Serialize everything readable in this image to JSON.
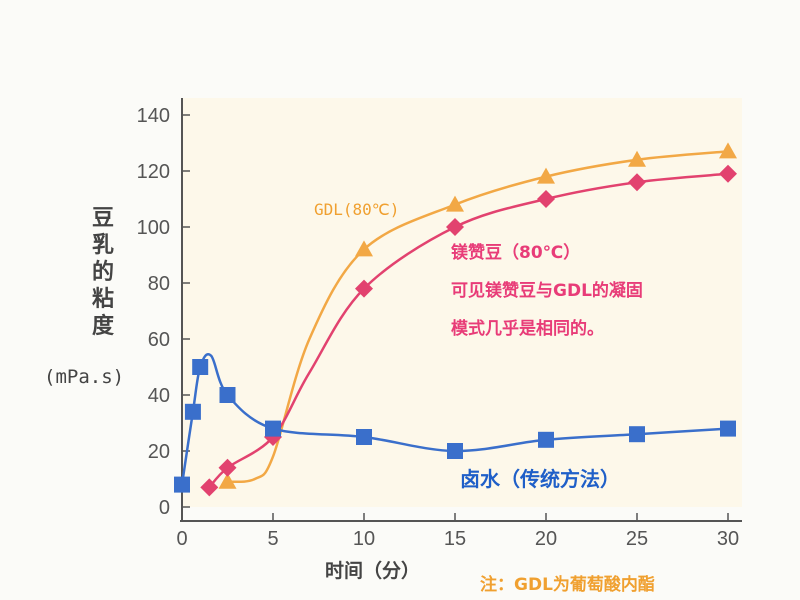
{
  "chart_data": {
    "type": "line",
    "title": "",
    "xlabel": "时间（分）",
    "ylabel": "豆乳的粘度",
    "yunit": "(mPa.s)",
    "xlim": [
      0,
      30
    ],
    "ylim": [
      0,
      140
    ],
    "xticks": [
      0,
      5,
      10,
      15,
      20,
      25,
      30
    ],
    "yticks": [
      0,
      20,
      40,
      60,
      80,
      100,
      120,
      140
    ],
    "grid": false,
    "series": [
      {
        "name": "卤水（传统方法）",
        "color": "#3a6fcb",
        "marker": "square",
        "points": [
          [
            0,
            8
          ],
          [
            0.6,
            34
          ],
          [
            1,
            50
          ],
          [
            2.5,
            40
          ],
          [
            5,
            28
          ],
          [
            10,
            25
          ],
          [
            15,
            20
          ],
          [
            20,
            24
          ],
          [
            25,
            26
          ],
          [
            30,
            28
          ]
        ],
        "line_points": [
          [
            0,
            8
          ],
          [
            0.6,
            34
          ],
          [
            1,
            50
          ],
          [
            1.6,
            54
          ],
          [
            2.5,
            40
          ],
          [
            5,
            28
          ],
          [
            10,
            25
          ],
          [
            15,
            20
          ],
          [
            20,
            24
          ],
          [
            25,
            26
          ],
          [
            30,
            28
          ]
        ]
      },
      {
        "name": "镁赞豆（80℃）",
        "color": "#e2426f",
        "marker": "diamond",
        "points": [
          [
            1.5,
            7
          ],
          [
            2.5,
            14
          ],
          [
            5,
            25
          ],
          [
            10,
            78
          ],
          [
            15,
            100
          ],
          [
            20,
            110
          ],
          [
            25,
            116
          ],
          [
            30,
            119
          ]
        ],
        "line_points": [
          [
            1.5,
            7
          ],
          [
            2.5,
            14
          ],
          [
            5,
            25
          ],
          [
            7,
            48
          ],
          [
            10,
            78
          ],
          [
            15,
            100
          ],
          [
            20,
            110
          ],
          [
            25,
            116
          ],
          [
            30,
            119
          ]
        ]
      },
      {
        "name": "GDL(80℃)",
        "color": "#f2a845",
        "marker": "triangle",
        "points": [
          [
            2.5,
            9
          ],
          [
            10,
            92
          ],
          [
            15,
            108
          ],
          [
            20,
            118
          ],
          [
            25,
            124
          ],
          [
            30,
            127
          ]
        ],
        "line_points": [
          [
            2.5,
            9
          ],
          [
            4,
            10
          ],
          [
            5,
            18
          ],
          [
            7,
            60
          ],
          [
            10,
            92
          ],
          [
            15,
            108
          ],
          [
            20,
            118
          ],
          [
            25,
            124
          ],
          [
            30,
            127
          ]
        ]
      }
    ],
    "annotations": {
      "gdl": "GDL(80℃)",
      "mg": "镁赞豆（80℃）",
      "mg_note1": "可见镁赞豆与GDL的凝固",
      "mg_note2": "模式几乎是相同的。",
      "brine": "卤水（传统方法）",
      "footnote": "注：GDL为葡萄酸内酯"
    }
  }
}
